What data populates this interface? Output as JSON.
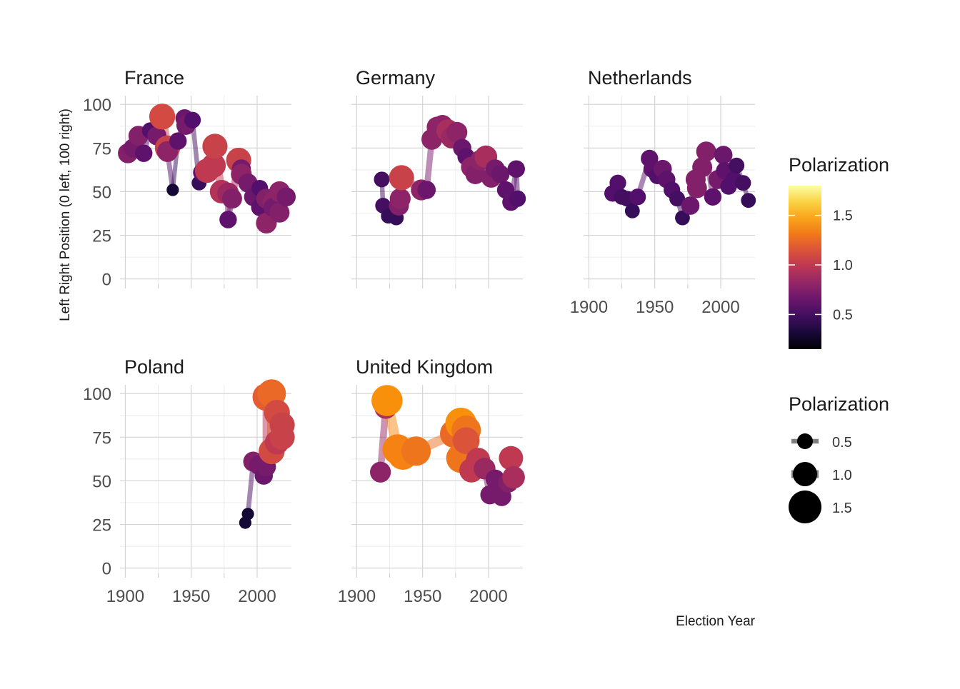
{
  "chart_data": {
    "type": "scatter",
    "facets": [
      {
        "name": "France",
        "points": [
          {
            "x": 1902,
            "y": 72,
            "p": 0.75
          },
          {
            "x": 1906,
            "y": 75,
            "p": 0.7
          },
          {
            "x": 1910,
            "y": 82,
            "p": 0.75
          },
          {
            "x": 1914,
            "y": 72,
            "p": 0.6
          },
          {
            "x": 1919,
            "y": 85,
            "p": 0.55
          },
          {
            "x": 1924,
            "y": 82,
            "p": 0.7
          },
          {
            "x": 1928,
            "y": 93,
            "p": 1.1
          },
          {
            "x": 1932,
            "y": 75,
            "p": 1.05
          },
          {
            "x": 1932,
            "y": 73,
            "p": 0.8
          },
          {
            "x": 1936,
            "y": 51,
            "p": 0.3
          },
          {
            "x": 1940,
            "y": 79,
            "p": 0.6
          },
          {
            "x": 1945,
            "y": 92,
            "p": 0.65
          },
          {
            "x": 1946,
            "y": 88,
            "p": 0.7
          },
          {
            "x": 1951,
            "y": 91,
            "p": 0.55
          },
          {
            "x": 1956,
            "y": 55,
            "p": 0.45
          },
          {
            "x": 1958,
            "y": 61,
            "p": 0.6
          },
          {
            "x": 1962,
            "y": 62,
            "p": 1.0
          },
          {
            "x": 1967,
            "y": 65,
            "p": 1.0
          },
          {
            "x": 1968,
            "y": 76,
            "p": 1.05
          },
          {
            "x": 1973,
            "y": 50,
            "p": 0.95
          },
          {
            "x": 1978,
            "y": 49,
            "p": 0.85
          },
          {
            "x": 1978,
            "y": 34,
            "p": 0.6
          },
          {
            "x": 1981,
            "y": 46,
            "p": 0.75
          },
          {
            "x": 1986,
            "y": 68,
            "p": 1.05
          },
          {
            "x": 1988,
            "y": 63,
            "p": 0.7
          },
          {
            "x": 1988,
            "y": 60,
            "p": 0.8
          },
          {
            "x": 1993,
            "y": 55,
            "p": 0.7
          },
          {
            "x": 1997,
            "y": 47,
            "p": 0.65
          },
          {
            "x": 2002,
            "y": 52,
            "p": 0.55
          },
          {
            "x": 2002,
            "y": 41,
            "p": 0.6
          },
          {
            "x": 2007,
            "y": 32,
            "p": 0.8
          },
          {
            "x": 2007,
            "y": 46,
            "p": 0.75
          },
          {
            "x": 2012,
            "y": 44,
            "p": 0.8
          },
          {
            "x": 2012,
            "y": 41,
            "p": 0.7
          },
          {
            "x": 2017,
            "y": 50,
            "p": 0.8
          },
          {
            "x": 2017,
            "y": 38,
            "p": 0.75
          },
          {
            "x": 2022,
            "y": 47,
            "p": 0.7
          }
        ]
      },
      {
        "name": "Germany",
        "points": [
          {
            "x": 1919,
            "y": 57,
            "p": 0.5
          },
          {
            "x": 1920,
            "y": 42,
            "p": 0.5
          },
          {
            "x": 1924,
            "y": 36,
            "p": 0.45
          },
          {
            "x": 1928,
            "y": 36,
            "p": 0.45
          },
          {
            "x": 1930,
            "y": 35,
            "p": 0.45
          },
          {
            "x": 1932,
            "y": 42,
            "p": 0.75
          },
          {
            "x": 1933,
            "y": 46,
            "p": 0.8
          },
          {
            "x": 1934,
            "y": 58,
            "p": 1.05
          },
          {
            "x": 1949,
            "y": 51,
            "p": 0.8
          },
          {
            "x": 1953,
            "y": 51,
            "p": 0.65
          },
          {
            "x": 1957,
            "y": 80,
            "p": 0.8
          },
          {
            "x": 1961,
            "y": 87,
            "p": 0.8
          },
          {
            "x": 1965,
            "y": 88,
            "p": 0.8
          },
          {
            "x": 1969,
            "y": 85,
            "p": 0.9
          },
          {
            "x": 1972,
            "y": 81,
            "p": 0.85
          },
          {
            "x": 1976,
            "y": 84,
            "p": 0.8
          },
          {
            "x": 1980,
            "y": 75,
            "p": 0.65
          },
          {
            "x": 1983,
            "y": 70,
            "p": 0.6
          },
          {
            "x": 1987,
            "y": 64,
            "p": 0.8
          },
          {
            "x": 1990,
            "y": 60,
            "p": 0.75
          },
          {
            "x": 1994,
            "y": 68,
            "p": 0.8
          },
          {
            "x": 1998,
            "y": 70,
            "p": 0.9
          },
          {
            "x": 2002,
            "y": 58,
            "p": 0.75
          },
          {
            "x": 2005,
            "y": 63,
            "p": 0.7
          },
          {
            "x": 2009,
            "y": 60,
            "p": 0.65
          },
          {
            "x": 2013,
            "y": 51,
            "p": 0.6
          },
          {
            "x": 2017,
            "y": 44,
            "p": 0.6
          },
          {
            "x": 2021,
            "y": 63,
            "p": 0.6
          },
          {
            "x": 2022,
            "y": 46,
            "p": 0.55
          }
        ]
      },
      {
        "name": "Netherlands",
        "points": [
          {
            "x": 1918,
            "y": 49,
            "p": 0.55
          },
          {
            "x": 1922,
            "y": 55,
            "p": 0.55
          },
          {
            "x": 1925,
            "y": 47,
            "p": 0.5
          },
          {
            "x": 1929,
            "y": 46,
            "p": 0.5
          },
          {
            "x": 1933,
            "y": 39,
            "p": 0.45
          },
          {
            "x": 1937,
            "y": 47,
            "p": 0.55
          },
          {
            "x": 1946,
            "y": 69,
            "p": 0.6
          },
          {
            "x": 1948,
            "y": 63,
            "p": 0.6
          },
          {
            "x": 1952,
            "y": 59,
            "p": 0.55
          },
          {
            "x": 1956,
            "y": 63,
            "p": 0.65
          },
          {
            "x": 1959,
            "y": 57,
            "p": 0.6
          },
          {
            "x": 1963,
            "y": 51,
            "p": 0.55
          },
          {
            "x": 1967,
            "y": 46,
            "p": 0.5
          },
          {
            "x": 1971,
            "y": 35,
            "p": 0.45
          },
          {
            "x": 1977,
            "y": 42,
            "p": 0.65
          },
          {
            "x": 1981,
            "y": 57,
            "p": 0.75
          },
          {
            "x": 1982,
            "y": 52,
            "p": 0.75
          },
          {
            "x": 1986,
            "y": 64,
            "p": 0.75
          },
          {
            "x": 1989,
            "y": 73,
            "p": 0.75
          },
          {
            "x": 1994,
            "y": 47,
            "p": 0.6
          },
          {
            "x": 1998,
            "y": 57,
            "p": 0.7
          },
          {
            "x": 2002,
            "y": 71,
            "p": 0.65
          },
          {
            "x": 2003,
            "y": 62,
            "p": 0.6
          },
          {
            "x": 2006,
            "y": 53,
            "p": 0.55
          },
          {
            "x": 2010,
            "y": 57,
            "p": 0.55
          },
          {
            "x": 2012,
            "y": 65,
            "p": 0.5
          },
          {
            "x": 2017,
            "y": 55,
            "p": 0.5
          },
          {
            "x": 2021,
            "y": 45,
            "p": 0.45
          }
        ]
      },
      {
        "name": "Poland",
        "points": [
          {
            "x": 1991,
            "y": 26,
            "p": 0.3
          },
          {
            "x": 1993,
            "y": 31,
            "p": 0.3
          },
          {
            "x": 1997,
            "y": 61,
            "p": 0.75
          },
          {
            "x": 2001,
            "y": 59,
            "p": 0.7
          },
          {
            "x": 2005,
            "y": 53,
            "p": 0.65
          },
          {
            "x": 2007,
            "y": 58,
            "p": 0.7
          },
          {
            "x": 2007,
            "y": 98,
            "p": 1.2
          },
          {
            "x": 2011,
            "y": 100,
            "p": 1.25
          },
          {
            "x": 2011,
            "y": 67,
            "p": 1.1
          },
          {
            "x": 2015,
            "y": 89,
            "p": 1.1
          },
          {
            "x": 2015,
            "y": 72,
            "p": 1.0
          },
          {
            "x": 2019,
            "y": 82,
            "p": 1.05
          },
          {
            "x": 2019,
            "y": 75,
            "p": 1.05
          }
        ]
      },
      {
        "name": "United Kingdom",
        "points": [
          {
            "x": 1918,
            "y": 55,
            "p": 0.8
          },
          {
            "x": 1922,
            "y": 92,
            "p": 0.9
          },
          {
            "x": 1923,
            "y": 96,
            "p": 1.4
          },
          {
            "x": 1931,
            "y": 68,
            "p": 1.35
          },
          {
            "x": 1935,
            "y": 65,
            "p": 1.35
          },
          {
            "x": 1945,
            "y": 67,
            "p": 1.3
          },
          {
            "x": 1974,
            "y": 77,
            "p": 1.25
          },
          {
            "x": 1979,
            "y": 83,
            "p": 1.4
          },
          {
            "x": 1979,
            "y": 63,
            "p": 1.3
          },
          {
            "x": 1983,
            "y": 79,
            "p": 1.3
          },
          {
            "x": 1983,
            "y": 73,
            "p": 1.15
          },
          {
            "x": 1987,
            "y": 56,
            "p": 1.0
          },
          {
            "x": 1992,
            "y": 62,
            "p": 1.0
          },
          {
            "x": 1997,
            "y": 57,
            "p": 0.85
          },
          {
            "x": 2001,
            "y": 42,
            "p": 0.7
          },
          {
            "x": 2005,
            "y": 51,
            "p": 0.7
          },
          {
            "x": 2010,
            "y": 41,
            "p": 0.7
          },
          {
            "x": 2015,
            "y": 49,
            "p": 0.75
          },
          {
            "x": 2017,
            "y": 63,
            "p": 1.0
          },
          {
            "x": 2019,
            "y": 52,
            "p": 0.9
          }
        ]
      }
    ],
    "xlim": [
      1896,
      2026
    ],
    "ylim": [
      -3,
      105
    ],
    "x_ticks": [
      1900,
      1950,
      2000
    ],
    "y_ticks": [
      0,
      25,
      50,
      75,
      100
    ],
    "xlabel": "Election Year",
    "ylabel": "Left Right Position (0 left, 100 right)",
    "grid": true,
    "legend_placement": "right",
    "color_legend": {
      "title": "Polarization",
      "colormap": "inferno",
      "range": [
        0.15,
        1.8
      ],
      "ticks": [
        0.5,
        1.0,
        1.5
      ],
      "tick_labels": [
        "0.5",
        "1.0",
        "1.5"
      ]
    },
    "size_legend": {
      "title": "Polarization",
      "values": [
        0.5,
        1.0,
        1.5
      ],
      "labels": [
        "0.5",
        "1.0",
        "1.5"
      ]
    }
  }
}
